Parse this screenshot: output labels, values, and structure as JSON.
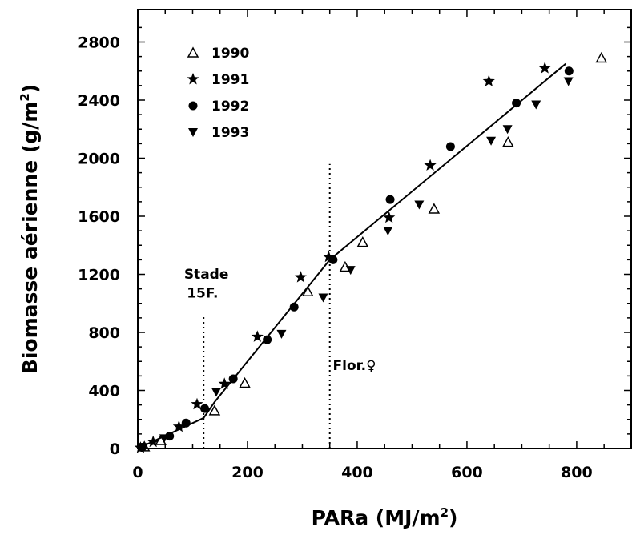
{
  "chart_data": {
    "type": "scatter",
    "title": "",
    "xlabel": "PARa (MJ/m",
    "xlabel_sup": "2",
    "xlabel_end": ")",
    "ylabel": "Biomasse aérienne (g/m",
    "ylabel_sup": "2",
    "ylabel_end": ")",
    "xlim": [
      0,
      860
    ],
    "ylim": [
      0,
      2930
    ],
    "x_ticks": [
      0,
      200,
      400,
      600,
      800
    ],
    "x_tick_labels": [
      "0",
      "200",
      "400",
      "600",
      "800"
    ],
    "y_ticks": [
      0,
      400,
      800,
      1200,
      1600,
      2000,
      2400,
      2800
    ],
    "y_tick_labels": [
      "0",
      "400",
      "800",
      "1200",
      "1600",
      "2000",
      "2400",
      "2800"
    ],
    "grid": false,
    "legend_position": "top-left",
    "series": [
      {
        "name": "1990",
        "marker": "triangle-open",
        "x": [
          12,
          42,
          140,
          195,
          310,
          378,
          410,
          540,
          675,
          845
        ],
        "y": [
          12,
          55,
          260,
          450,
          1080,
          1250,
          1420,
          1650,
          2110,
          2690
        ]
      },
      {
        "name": "1991",
        "marker": "star",
        "x": [
          5,
          28,
          75,
          108,
          158,
          218,
          297,
          348,
          458,
          533,
          640,
          742
        ],
        "y": [
          5,
          45,
          150,
          305,
          445,
          770,
          1180,
          1320,
          1590,
          1950,
          2530,
          2620
        ]
      },
      {
        "name": "1992",
        "marker": "circle-filled",
        "x": [
          8,
          58,
          88,
          122,
          174,
          236,
          285,
          356,
          460,
          570,
          690,
          786
        ],
        "y": [
          8,
          85,
          175,
          275,
          480,
          750,
          975,
          1300,
          1715,
          2080,
          2380,
          2600
        ]
      },
      {
        "name": "1993",
        "marker": "triangle-down-filled",
        "x": [
          10,
          48,
          143,
          262,
          338,
          388,
          456,
          513,
          644,
          674,
          726,
          785
        ],
        "y": [
          10,
          70,
          390,
          790,
          1040,
          1230,
          1500,
          1680,
          2120,
          2200,
          2370,
          2530
        ]
      }
    ],
    "fit_line": {
      "x": [
        0,
        120,
        140,
        350,
        780
      ],
      "y": [
        0,
        210,
        320,
        1300,
        2650
      ]
    },
    "vlines": [
      {
        "x": 120,
        "ymax": 920
      },
      {
        "x": 350,
        "ymax": 1960
      }
    ],
    "annotations": [
      {
        "text": "Stade",
        "x": 125,
        "y": 1170
      },
      {
        "text": "15F.",
        "x": 118,
        "y": 1040
      },
      {
        "text": "Flor.♀",
        "x": 395,
        "y": 540
      }
    ]
  }
}
